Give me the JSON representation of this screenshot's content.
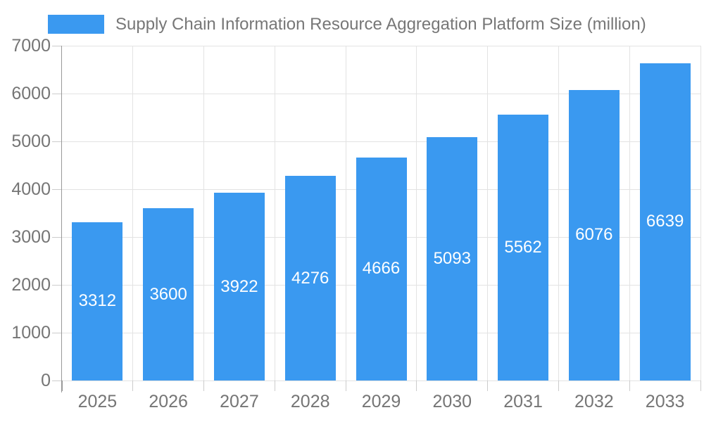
{
  "legend": {
    "label": "Supply Chain Information Resource Aggregation Platform Size (million)"
  },
  "chart_data": {
    "type": "bar",
    "title": "Supply Chain Information Resource Aggregation Platform Size (million)",
    "categories": [
      "2025",
      "2026",
      "2027",
      "2028",
      "2029",
      "2030",
      "2031",
      "2032",
      "2033"
    ],
    "values": [
      3312,
      3600,
      3922,
      4276,
      4666,
      5093,
      5562,
      6076,
      6639
    ],
    "xlabel": "",
    "ylabel": "",
    "ylim": [
      0,
      7000
    ],
    "y_ticks": [
      0,
      1000,
      2000,
      3000,
      4000,
      5000,
      6000,
      7000
    ],
    "grid": true,
    "legend_position": "top-left",
    "colors": {
      "bar": "#3a99f0",
      "bar_value_text": "#ffffff",
      "axis_text": "#757575",
      "title_text": "#777777",
      "grid_line": "#e3e3e3",
      "tick_line": "#cccccc",
      "axis_line": "#999999"
    }
  }
}
